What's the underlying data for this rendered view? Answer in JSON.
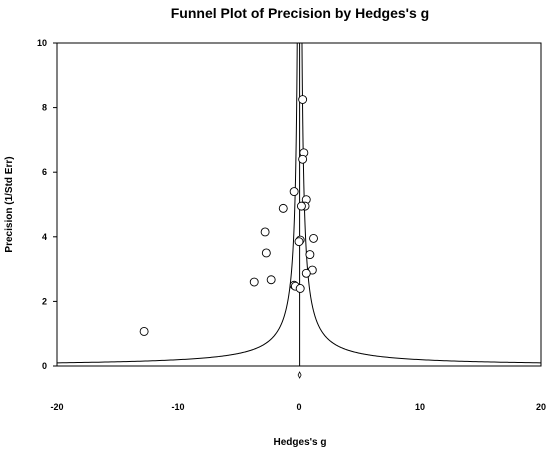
{
  "chart_data": {
    "type": "scatter",
    "title": "Funnel Plot of Precision by Hedges's g",
    "xlabel": "Hedges's g",
    "ylabel": "Precision (1/Std Err)",
    "xlim": [
      -20,
      20
    ],
    "ylim": [
      0,
      10
    ],
    "x_ticks": [
      -20,
      -10,
      0,
      10,
      20
    ],
    "y_ticks": [
      0,
      2,
      4,
      6,
      8,
      10
    ],
    "x_tick_labels": [
      "-20",
      "-10",
      "0",
      "10",
      "20"
    ],
    "y_tick_labels": [
      "0",
      "2",
      "4",
      "6",
      "8",
      "10"
    ],
    "grid": false,
    "legend": "none",
    "combined_effect": 0.05,
    "funnel_z": 1.96,
    "points": [
      {
        "x": 0.3,
        "y": 8.25
      },
      {
        "x": 0.4,
        "y": 6.6
      },
      {
        "x": 0.3,
        "y": 6.4
      },
      {
        "x": -0.4,
        "y": 5.4
      },
      {
        "x": 0.6,
        "y": 5.15
      },
      {
        "x": 0.5,
        "y": 4.95
      },
      {
        "x": 0.2,
        "y": 4.95
      },
      {
        "x": -1.3,
        "y": 4.88
      },
      {
        "x": -2.8,
        "y": 4.15
      },
      {
        "x": 1.2,
        "y": 3.95
      },
      {
        "x": 0.1,
        "y": 3.9
      },
      {
        "x": 0.0,
        "y": 3.85
      },
      {
        "x": -2.7,
        "y": 3.5
      },
      {
        "x": 0.9,
        "y": 3.45
      },
      {
        "x": 1.1,
        "y": 2.97
      },
      {
        "x": 0.6,
        "y": 2.87
      },
      {
        "x": -2.3,
        "y": 2.67
      },
      {
        "x": -3.7,
        "y": 2.6
      },
      {
        "x": -0.4,
        "y": 2.5
      },
      {
        "x": -0.3,
        "y": 2.47
      },
      {
        "x": 0.1,
        "y": 2.4
      },
      {
        "x": -12.8,
        "y": 1.07
      }
    ]
  }
}
